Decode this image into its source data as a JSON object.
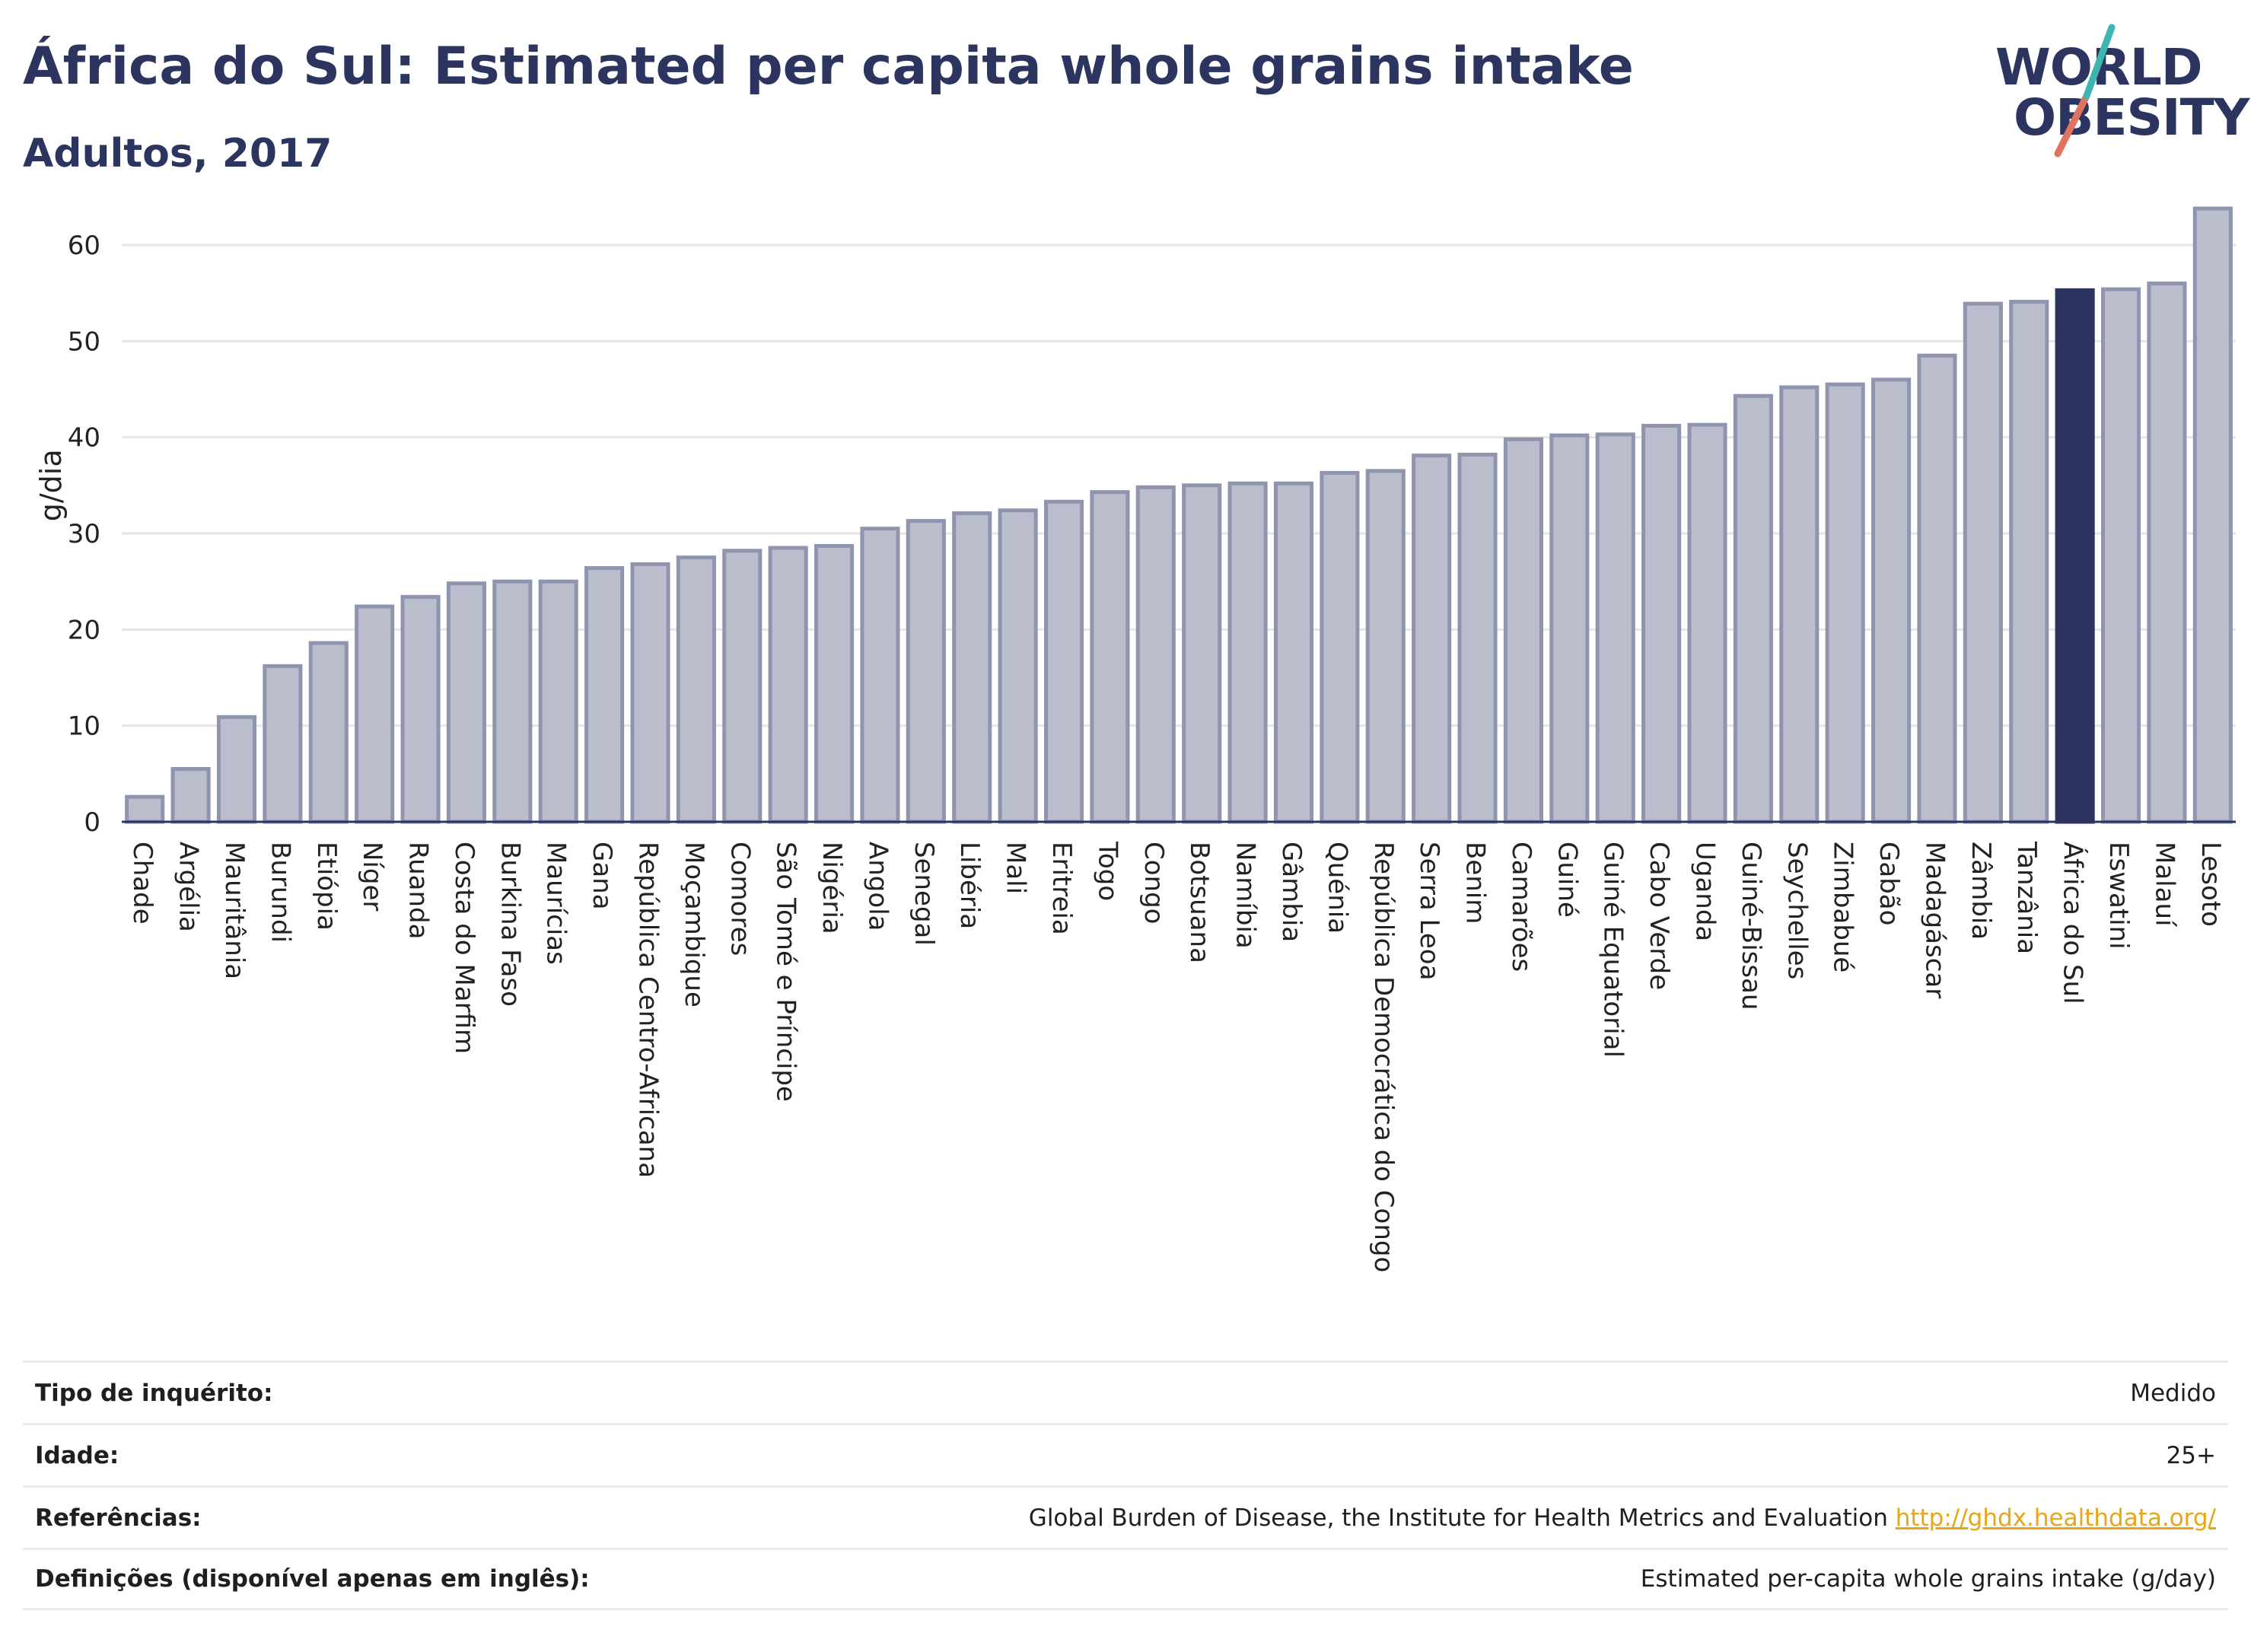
{
  "header": {
    "title": "África do Sul: Estimated per capita whole grains intake",
    "subtitle": "Adultos, 2017"
  },
  "logo": {
    "line1": "WORLD",
    "line2": "OBESITY"
  },
  "colors": {
    "bar": "#b9bdcc",
    "bar_stroke": "#8f95ae",
    "highlight": "#2b3560",
    "title": "#2b3560",
    "link": "#e8a516"
  },
  "chart_data": {
    "type": "bar",
    "ylabel": "g/dia",
    "ylim": [
      0,
      65
    ],
    "yticks": [
      0,
      10,
      20,
      30,
      40,
      50,
      60
    ],
    "grid": true,
    "highlight": "África do Sul",
    "categories": [
      "Chade",
      "Argélia",
      "Mauritânia",
      "Burundi",
      "Etiópia",
      "Níger",
      "Ruanda",
      "Costa do Marfim",
      "Burkina Faso",
      "Maurícias",
      "Gana",
      "República Centro-Africana",
      "Moçambique",
      "Comores",
      "São Tomé e Príncipe",
      "Nigéria",
      "Angola",
      "Senegal",
      "Libéria",
      "Mali",
      "Eritreia",
      "Togo",
      "Congo",
      "Botsuana",
      "Namíbia",
      "Gâmbia",
      "Quénia",
      "República Democrática do Congo",
      "Serra Leoa",
      "Benim",
      "Camarões",
      "Guiné",
      "Guiné Equatorial",
      "Cabo Verde",
      "Uganda",
      "Guiné-Bissau",
      "Seychelles",
      "Zimbabué",
      "Gabão",
      "Madagáscar",
      "Zâmbia",
      "Tanzânia",
      "África do Sul",
      "Eswatini",
      "Malauí",
      "Lesoto"
    ],
    "values": [
      2.6,
      5.5,
      10.9,
      16.2,
      18.6,
      22.4,
      23.4,
      24.8,
      25.0,
      25.0,
      26.4,
      26.8,
      27.5,
      28.2,
      28.5,
      28.7,
      30.5,
      31.3,
      32.1,
      32.4,
      33.3,
      34.3,
      34.8,
      35.0,
      35.2,
      35.2,
      36.3,
      36.5,
      38.1,
      38.2,
      39.8,
      40.2,
      40.3,
      41.2,
      41.3,
      44.3,
      45.2,
      45.5,
      46.0,
      48.5,
      53.9,
      54.1,
      55.3,
      55.4,
      56.0,
      63.8
    ]
  },
  "footer": {
    "rows": [
      {
        "key": "Tipo de inquérito:",
        "value": "Medido"
      },
      {
        "key": "Idade:",
        "value": "25+"
      },
      {
        "key": "Referências:",
        "value": "Global Burden of Disease, the Institute for Health Metrics and Evaluation",
        "link": "http://ghdx.healthdata.org/"
      },
      {
        "key": "Definições (disponível apenas em inglês):",
        "value": "Estimated per-capita whole grains intake (g/day)"
      }
    ]
  }
}
